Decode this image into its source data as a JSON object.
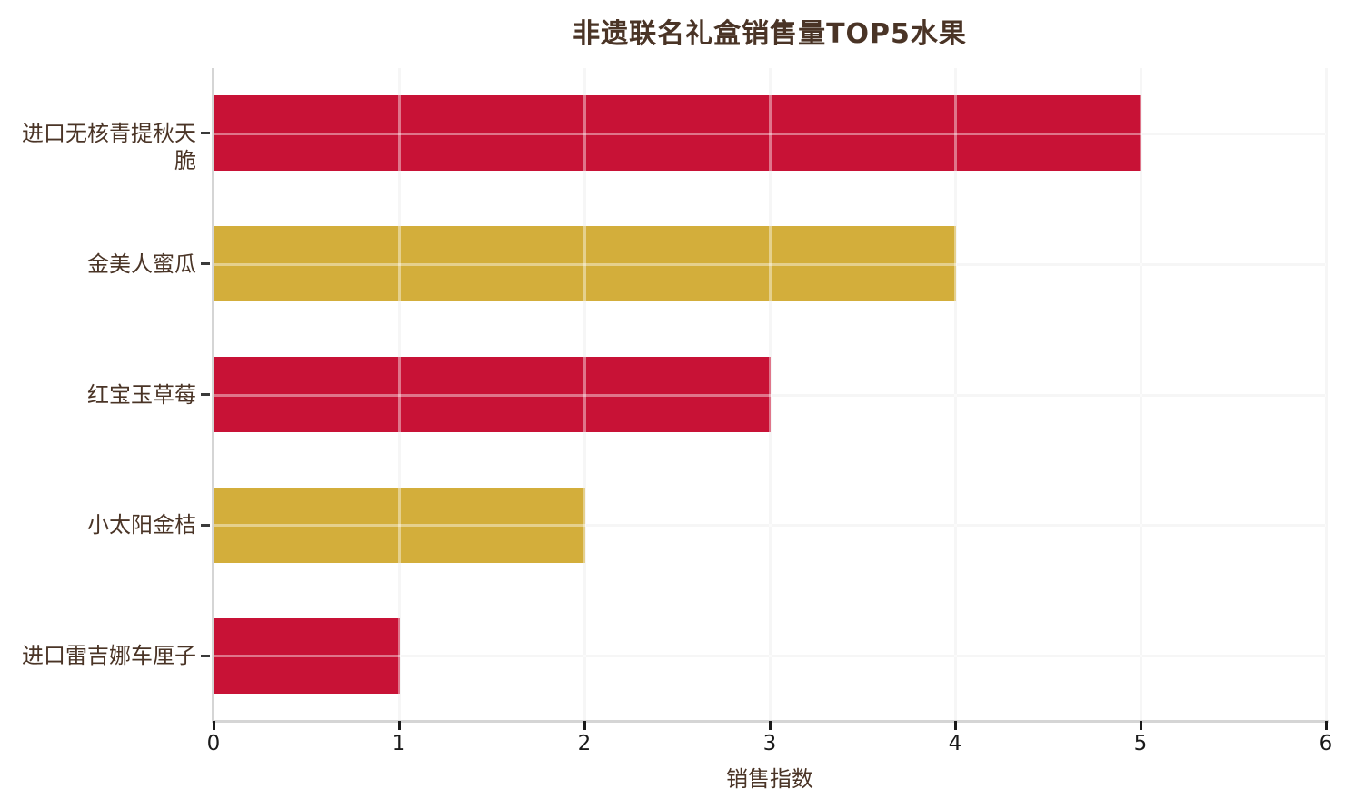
{
  "chart_data": {
    "type": "bar",
    "orientation": "horizontal",
    "title": "非遗联名礼盒销售量TOP5水果",
    "xlabel": "销售指数",
    "ylabel": "",
    "categories": [
      "进口无核青提秋天脆",
      "金美人蜜瓜",
      "红宝玉草莓",
      "小太阳金桔",
      "进口雷吉娜车厘子"
    ],
    "values": [
      5,
      4,
      3,
      2,
      1
    ],
    "bar_colors": [
      "#C81236",
      "#D3AE3B",
      "#C81236",
      "#D3AE3B",
      "#C81236"
    ],
    "xlim": [
      0,
      6
    ],
    "xticks": [
      "0",
      "1",
      "2",
      "3",
      "4",
      "5",
      "6"
    ],
    "grid": "on",
    "legend": "none",
    "colors": {
      "red_bar": "#C81236",
      "gold_bar": "#D3AE3B",
      "title_text": "#4A3426",
      "axis_label_text": "#4A3426",
      "category_label_text": "#4A3426",
      "tick_label_text": "#1A1A1A",
      "axis_line": "#D5D5D5",
      "gridline": "#F0F0F0",
      "background": "#FFFFFF"
    }
  }
}
